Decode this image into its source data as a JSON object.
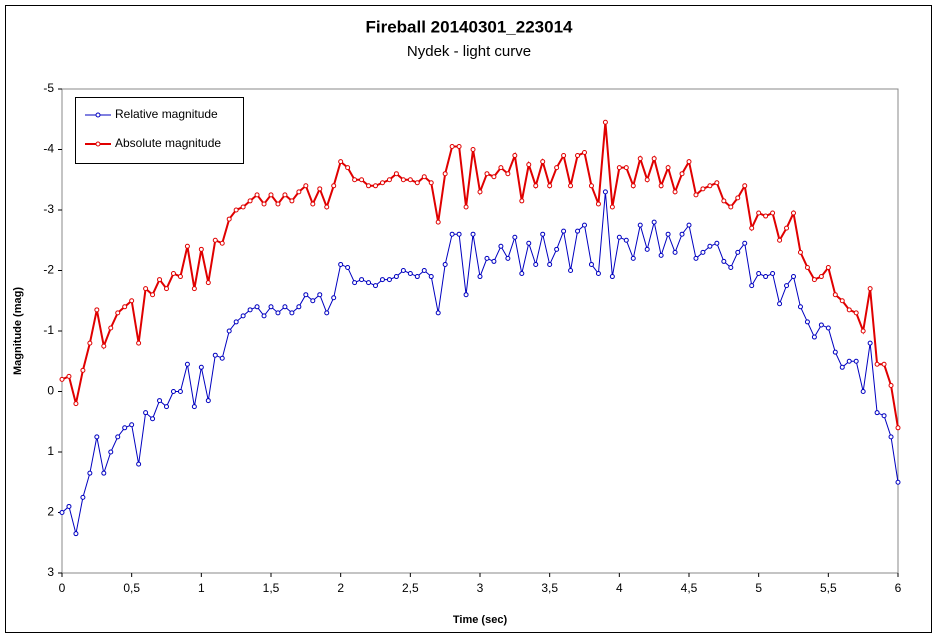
{
  "chart_data": {
    "type": "line",
    "title": "Fireball 20140301_223014",
    "subtitle": "Nydek - light curve",
    "xlabel": "Time (sec)",
    "ylabel": "Magnitude (mag)",
    "legend": "upper left",
    "inverted_y": true,
    "xlim": [
      0,
      6
    ],
    "ylim": [
      -5,
      3
    ],
    "xticks": [
      0,
      {
        "value": 0.5,
        "label": "0,5"
      },
      1,
      {
        "value": 1.5,
        "label": "1,5"
      },
      2,
      {
        "value": 2.5,
        "label": "2,5"
      },
      3,
      {
        "value": 3.5,
        "label": "3,5"
      },
      4,
      {
        "value": 4.5,
        "label": "4,5"
      },
      5,
      {
        "value": 5.5,
        "label": "5,5"
      },
      6
    ],
    "yticks": [
      -5,
      -4,
      -3,
      -2,
      -1,
      0,
      1,
      2,
      3
    ],
    "x": [
      0,
      0.05,
      0.1,
      0.15,
      0.2,
      0.25,
      0.3,
      0.35,
      0.4,
      0.45,
      0.5,
      0.55,
      0.6,
      0.65,
      0.7,
      0.75,
      0.8,
      0.85,
      0.9,
      0.95,
      1,
      1.05,
      1.1,
      1.15,
      1.2,
      1.25,
      1.3,
      1.35,
      1.4,
      1.45,
      1.5,
      1.55,
      1.6,
      1.65,
      1.7,
      1.75,
      1.8,
      1.85,
      1.9,
      1.95,
      2,
      2.05,
      2.1,
      2.15,
      2.2,
      2.25,
      2.3,
      2.35,
      2.4,
      2.45,
      2.5,
      2.55,
      2.6,
      2.65,
      2.7,
      2.75,
      2.8,
      2.85,
      2.9,
      2.95,
      3,
      3.05,
      3.1,
      3.15,
      3.2,
      3.25,
      3.3,
      3.35,
      3.4,
      3.45,
      3.5,
      3.55,
      3.6,
      3.65,
      3.7,
      3.75,
      3.8,
      3.85,
      3.9,
      3.95,
      4,
      4.05,
      4.1,
      4.15,
      4.2,
      4.25,
      4.3,
      4.35,
      4.4,
      4.45,
      4.5,
      4.55,
      4.6,
      4.65,
      4.7,
      4.75,
      4.8,
      4.85,
      4.9,
      4.95,
      5,
      5.05,
      5.1,
      5.15,
      5.2,
      5.25,
      5.3,
      5.35,
      5.4,
      5.45,
      5.5,
      5.55,
      5.6,
      5.65,
      5.7,
      5.75,
      5.8,
      5.85,
      5.9,
      5.95,
      6
    ],
    "series": [
      {
        "name": "Relative magnitude",
        "color": "#0000c0",
        "values": [
          2.0,
          1.9,
          2.35,
          1.75,
          1.35,
          0.75,
          1.35,
          1.0,
          0.75,
          0.6,
          0.55,
          1.2,
          0.35,
          0.45,
          0.15,
          0.25,
          0.0,
          0.0,
          -0.45,
          0.25,
          -0.4,
          0.15,
          -0.6,
          -0.55,
          -1.0,
          -1.15,
          -1.25,
          -1.35,
          -1.4,
          -1.25,
          -1.4,
          -1.3,
          -1.4,
          -1.3,
          -1.4,
          -1.6,
          -1.5,
          -1.6,
          -1.3,
          -1.55,
          -2.1,
          -2.05,
          -1.8,
          -1.85,
          -1.8,
          -1.75,
          -1.85,
          -1.85,
          -1.9,
          -2.0,
          -1.95,
          -1.9,
          -2.0,
          -1.9,
          -1.3,
          -2.1,
          -2.6,
          -2.6,
          -1.6,
          -2.6,
          -1.9,
          -2.2,
          -2.15,
          -2.4,
          -2.2,
          -2.55,
          -1.95,
          -2.45,
          -2.1,
          -2.6,
          -2.1,
          -2.35,
          -2.65,
          -2.0,
          -2.65,
          -2.75,
          -2.1,
          -1.95,
          -3.3,
          -1.9,
          -2.55,
          -2.5,
          -2.2,
          -2.75,
          -2.35,
          -2.8,
          -2.25,
          -2.6,
          -2.3,
          -2.6,
          -2.75,
          -2.2,
          -2.3,
          -2.4,
          -2.45,
          -2.15,
          -2.05,
          -2.3,
          -2.45,
          -1.75,
          -1.95,
          -1.9,
          -1.95,
          -1.45,
          -1.75,
          -1.9,
          -1.4,
          -1.15,
          -0.9,
          -1.1,
          -1.05,
          -0.65,
          -0.4,
          -0.5,
          -0.5,
          0.0,
          -0.8,
          0.35,
          0.4,
          0.75,
          1.5
        ]
      },
      {
        "name": "Absolute magnitude",
        "color": "#e00000",
        "values": [
          -0.2,
          -0.25,
          0.2,
          -0.35,
          -0.8,
          -1.35,
          -0.75,
          -1.05,
          -1.3,
          -1.4,
          -1.5,
          -0.8,
          -1.7,
          -1.6,
          -1.85,
          -1.7,
          -1.95,
          -1.9,
          -2.4,
          -1.7,
          -2.35,
          -1.8,
          -2.5,
          -2.45,
          -2.85,
          -3.0,
          -3.05,
          -3.15,
          -3.25,
          -3.1,
          -3.25,
          -3.1,
          -3.25,
          -3.15,
          -3.3,
          -3.4,
          -3.1,
          -3.35,
          -3.05,
          -3.4,
          -3.8,
          -3.7,
          -3.5,
          -3.5,
          -3.4,
          -3.4,
          -3.45,
          -3.5,
          -3.6,
          -3.5,
          -3.5,
          -3.45,
          -3.55,
          -3.45,
          -2.8,
          -3.6,
          -4.05,
          -4.05,
          -3.05,
          -4.0,
          -3.3,
          -3.6,
          -3.55,
          -3.7,
          -3.6,
          -3.9,
          -3.15,
          -3.75,
          -3.4,
          -3.8,
          -3.4,
          -3.7,
          -3.9,
          -3.4,
          -3.9,
          -3.95,
          -3.4,
          -3.1,
          -4.45,
          -3.05,
          -3.7,
          -3.7,
          -3.4,
          -3.85,
          -3.5,
          -3.85,
          -3.4,
          -3.7,
          -3.3,
          -3.6,
          -3.8,
          -3.25,
          -3.35,
          -3.4,
          -3.45,
          -3.15,
          -3.05,
          -3.2,
          -3.4,
          -2.7,
          -2.95,
          -2.9,
          -2.95,
          -2.5,
          -2.7,
          -2.95,
          -2.3,
          -2.05,
          -1.85,
          -1.9,
          -2.05,
          -1.6,
          -1.5,
          -1.35,
          -1.3,
          -1.0,
          -1.7,
          -0.45,
          -0.45,
          -0.1,
          0.6
        ]
      }
    ]
  }
}
